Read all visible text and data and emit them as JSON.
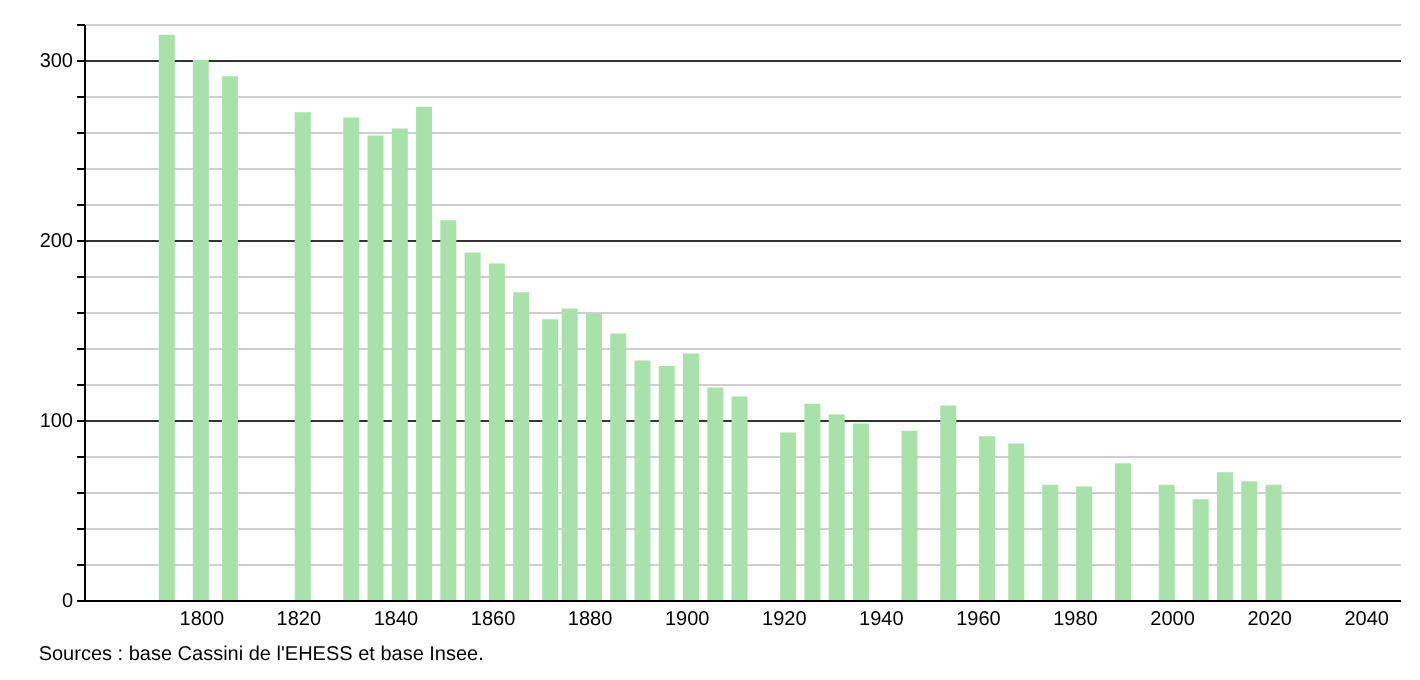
{
  "chart_data": {
    "type": "bar",
    "x": [
      1793,
      1800,
      1806,
      1821,
      1831,
      1836,
      1841,
      1846,
      1851,
      1856,
      1861,
      1866,
      1872,
      1876,
      1881,
      1886,
      1891,
      1896,
      1901,
      1906,
      1911,
      1921,
      1926,
      1931,
      1936,
      1946,
      1954,
      1962,
      1968,
      1975,
      1982,
      1990,
      1999,
      2006,
      2011,
      2016,
      2021
    ],
    "values": [
      314,
      300,
      291,
      271,
      268,
      258,
      262,
      274,
      211,
      193,
      187,
      171,
      156,
      162,
      159,
      148,
      133,
      130,
      137,
      118,
      113,
      93,
      109,
      103,
      98,
      94,
      108,
      91,
      87,
      64,
      63,
      76,
      64,
      56,
      71,
      66,
      64
    ],
    "color": "#a8e2aa",
    "xlim": [
      1778,
      2045
    ],
    "xticks": [
      1800,
      1820,
      1840,
      1860,
      1880,
      1900,
      1920,
      1940,
      1960,
      1980,
      2000,
      2020,
      2040
    ],
    "ylim": [
      0,
      320
    ],
    "yticks": [
      0,
      {
        "value": 20,
        "label": null
      },
      {
        "value": 40,
        "label": null
      },
      {
        "value": 60,
        "label": null
      },
      {
        "value": 80,
        "label": null
      },
      100,
      {
        "value": 120,
        "label": null
      },
      {
        "value": 140,
        "label": null
      },
      {
        "value": 160,
        "label": null
      },
      {
        "value": 180,
        "label": null
      },
      200,
      {
        "value": 220,
        "label": null
      },
      {
        "value": 240,
        "label": null
      },
      {
        "value": 260,
        "label": null
      },
      {
        "value": 280,
        "label": null
      },
      300,
      {
        "value": 320,
        "label": null
      }
    ],
    "grid": "y",
    "annotations": [
      "Sources : base Cassini de l'EHESS et base Insee."
    ]
  }
}
